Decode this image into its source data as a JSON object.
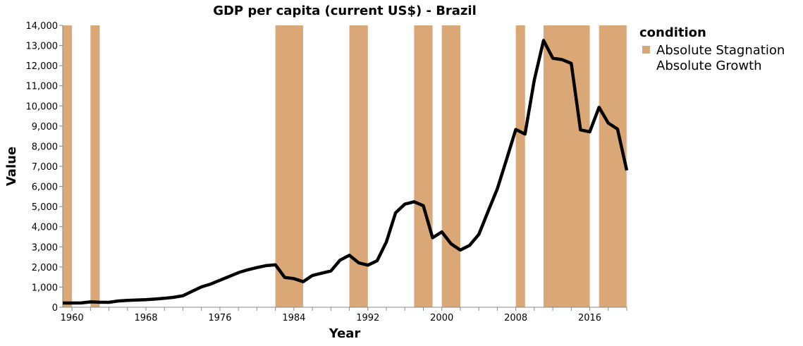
{
  "chart_data": {
    "type": "line",
    "title": "GDP per capita (current US$) - Brazil",
    "xlabel": "Year",
    "ylabel": "Value",
    "xlim": [
      1959,
      2020
    ],
    "ylim": [
      0,
      14000
    ],
    "grid": false,
    "legend_position": "top-right",
    "x_ticks": [
      1960,
      1968,
      1976,
      1984,
      1992,
      2000,
      2008,
      2016
    ],
    "y_ticks": [
      0,
      1000,
      2000,
      3000,
      4000,
      5000,
      6000,
      7000,
      8000,
      9000,
      10000,
      11000,
      12000,
      13000,
      14000
    ],
    "y_tick_labels": [
      "0",
      "1,000",
      "2,000",
      "3,000",
      "4,000",
      "5,000",
      "6,000",
      "7,000",
      "8,000",
      "9,000",
      "10,000",
      "11,000",
      "12,000",
      "13,000",
      "14,000"
    ],
    "series": [
      {
        "name": "GDP per capita",
        "color": "#000000",
        "x": [
          1959,
          1960,
          1961,
          1962,
          1963,
          1964,
          1965,
          1966,
          1967,
          1968,
          1969,
          1970,
          1971,
          1972,
          1973,
          1974,
          1975,
          1976,
          1977,
          1978,
          1979,
          1980,
          1981,
          1982,
          1983,
          1984,
          1985,
          1986,
          1987,
          1988,
          1989,
          1990,
          1991,
          1992,
          1993,
          1994,
          1995,
          1996,
          1997,
          1998,
          1999,
          2000,
          2001,
          2002,
          2003,
          2004,
          2005,
          2006,
          2007,
          2008,
          2009,
          2010,
          2011,
          2012,
          2013,
          2014,
          2015,
          2016,
          2017,
          2018,
          2019,
          2020
        ],
        "y": [
          210,
          210,
          215,
          265,
          250,
          245,
          310,
          340,
          360,
          375,
          405,
          445,
          495,
          570,
          790,
          1010,
          1150,
          1340,
          1530,
          1720,
          1860,
          1970,
          2070,
          2110,
          1480,
          1420,
          1270,
          1580,
          1690,
          1800,
          2340,
          2580,
          2210,
          2090,
          2310,
          3240,
          4690,
          5120,
          5240,
          5040,
          3450,
          3740,
          3150,
          2840,
          3070,
          3620,
          4760,
          5880,
          7340,
          8830,
          8600,
          11290,
          13250,
          12370,
          12300,
          12110,
          8810,
          8710,
          9930,
          9150,
          8850,
          6800
        ]
      }
    ],
    "conditions": [
      {
        "name": "Absolute Stagnation",
        "color": "#D9A876"
      },
      {
        "name": "Absolute Growth",
        "color": "#ffffff"
      }
    ],
    "stagnation_periods": [
      [
        1959,
        1960
      ],
      [
        1962,
        1963
      ],
      [
        1982,
        1985
      ],
      [
        1990,
        1992
      ],
      [
        1997,
        1999
      ],
      [
        2000,
        2002
      ],
      [
        2008,
        2009
      ],
      [
        2011,
        2016
      ],
      [
        2017,
        2020
      ]
    ],
    "legend_title": "condition"
  }
}
